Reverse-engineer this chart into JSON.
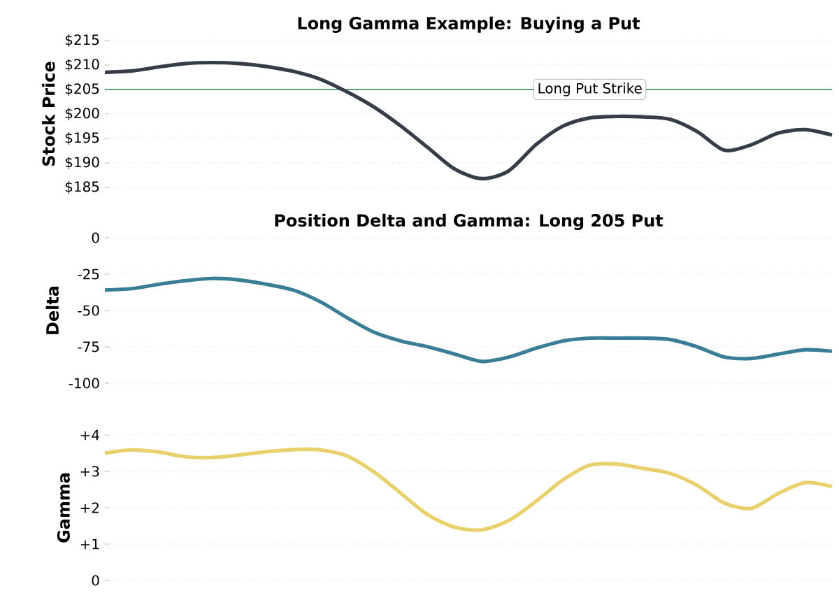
{
  "chart_data": [
    {
      "type": "line",
      "title": "Long Gamma Example: Buying a Put",
      "ylabel": "Stock Price",
      "categories": [
        null,
        null,
        null,
        null,
        null,
        null,
        null,
        null,
        null,
        null,
        null,
        null,
        null,
        null,
        null,
        null,
        null,
        null,
        null,
        null,
        null,
        null,
        null,
        null,
        null,
        null,
        null,
        null
      ],
      "series": [
        {
          "color": "#363d48",
          "values": [
            208.5,
            208.8,
            209.6,
            210.3,
            210.5,
            210.3,
            209.7,
            208.7,
            207.1,
            204.5,
            201.4,
            197.5,
            193.1,
            188.7,
            186.8,
            188.4,
            193.7,
            197.5,
            199.2,
            199.5,
            199.4,
            198.9,
            196.4,
            192.6,
            193.7,
            196.1,
            196.8,
            195.7
          ]
        }
      ],
      "ylim": [
        185,
        215
      ],
      "yticks": [
        {
          "value": 185,
          "label": "$185"
        },
        {
          "value": 190,
          "label": "$190"
        },
        {
          "value": 195,
          "label": "$195"
        },
        {
          "value": 200,
          "label": "$200"
        },
        {
          "value": 205,
          "label": "$205"
        },
        {
          "value": 210,
          "label": "$210"
        },
        {
          "value": 215,
          "label": "$215"
        }
      ],
      "ref_lines": [
        {
          "axis": "y",
          "value": 205,
          "label": "Long Put Strike",
          "color": "#5a9e7a"
        }
      ],
      "grid": "y",
      "tick_labels": "y"
    },
    {
      "type": "line",
      "title": "Position Delta and Gamma: Long 205 Put",
      "ylabel": "Delta",
      "categories": [
        null,
        null,
        null,
        null,
        null,
        null,
        null,
        null,
        null,
        null,
        null,
        null,
        null,
        null,
        null,
        null,
        null,
        null,
        null,
        null,
        null,
        null,
        null,
        null,
        null,
        null,
        null,
        null
      ],
      "series": [
        {
          "color": "#3a7d96",
          "values": [
            -36,
            -35,
            -32,
            -29.5,
            -28,
            -29,
            -32,
            -36,
            -44,
            -55,
            -65,
            -71,
            -75,
            -80,
            -85,
            -82,
            -76,
            -71,
            -69,
            -69,
            -69,
            -70,
            -75,
            -82,
            -83,
            -80,
            -77,
            -78
          ]
        }
      ],
      "ylim": [
        -100,
        0
      ],
      "yticks": [
        -100,
        -75,
        -50,
        -25,
        0
      ],
      "grid": "y",
      "tick_labels": "y"
    },
    {
      "type": "line",
      "ylabel": "Gamma",
      "categories": [
        null,
        null,
        null,
        null,
        null,
        null,
        null,
        null,
        null,
        null,
        null,
        null,
        null,
        null,
        null,
        null,
        null,
        null,
        null,
        null,
        null,
        null,
        null,
        null,
        null,
        null,
        null,
        null
      ],
      "series": [
        {
          "color": "#e8d06c",
          "values": [
            3.5,
            3.59,
            3.53,
            3.4,
            3.38,
            3.45,
            3.54,
            3.6,
            3.59,
            3.42,
            2.98,
            2.39,
            1.8,
            1.46,
            1.39,
            1.65,
            2.17,
            2.76,
            3.17,
            3.2,
            3.08,
            2.94,
            2.61,
            2.13,
            1.98,
            2.39,
            2.69,
            2.58
          ]
        }
      ],
      "ylim": [
        0,
        4
      ],
      "yticks": [
        0,
        {
          "value": 1,
          "label": "+1"
        },
        {
          "value": 2,
          "label": "+2"
        },
        {
          "value": 3,
          "label": "+3"
        },
        {
          "value": 4,
          "label": "+4"
        }
      ],
      "grid": "y",
      "tick_labels": "y"
    }
  ]
}
